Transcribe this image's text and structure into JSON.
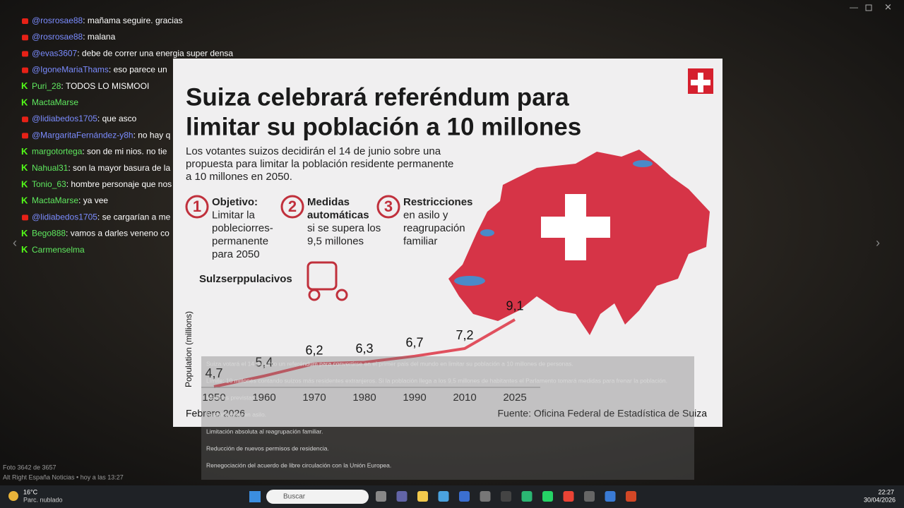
{
  "chat": [
    {
      "source": "youtube",
      "user": "@rosrosae88",
      "text": "mañama seguire. gracias"
    },
    {
      "source": "youtube",
      "user": "@rosrosae88",
      "text": "malana"
    },
    {
      "source": "youtube",
      "user": "@evas3607",
      "text": "debe de correr una energia super densa"
    },
    {
      "source": "youtube",
      "user": "@IgoneMariaThams",
      "text": "eso parece un"
    },
    {
      "source": "kick",
      "user": "Puri_28",
      "text": "TODOS LO MISMOOI"
    },
    {
      "source": "kick",
      "user": "MactaMarse"
    },
    {
      "source": "youtube",
      "user": "@lidiabedos1705",
      "text": "que asco"
    },
    {
      "source": "youtube",
      "user": "@MargaritaFernández-y8h",
      "text": "no hay q"
    },
    {
      "source": "kick",
      "user": "margotortega",
      "text": "son de mi nios. no tie"
    },
    {
      "source": "kick",
      "user": "Nahual31",
      "text": "son la mayor basura de la"
    },
    {
      "source": "kick",
      "user": "Tonio_63",
      "text": "hombre personaje que nos"
    },
    {
      "source": "kick",
      "user": "MactaMarse",
      "text": "ya vee"
    },
    {
      "source": "youtube",
      "user": "@lidiabedos1705",
      "text": "se cargarían a me"
    },
    {
      "source": "kick",
      "user": "Bego888",
      "text": "vamos a darles veneno co"
    },
    {
      "source": "kick",
      "user": "Carmenselma"
    }
  ],
  "infographic": {
    "title": [
      "Suiza celebrará referéndum para",
      "limitar su población a 10 millones"
    ],
    "subtitle": [
      "Los votantes suizos decidirán el 14 de junio sobre una",
      "propuesta para limitar la población residente permanente",
      "a 10 millones en 2050."
    ],
    "points": [
      {
        "number": "1",
        "lines": [
          "Objetivo:",
          "Limitar la",
          "pobleciorres-",
          "permanente",
          "para 2050"
        ]
      },
      {
        "number": "2",
        "lines": [
          "Medidas",
          "automáticas",
          "si se supera los",
          "9,5 millones"
        ]
      },
      {
        "number": "3",
        "lines": [
          "Restricciones",
          "en asilo y",
          "reagrupación",
          "familiar"
        ]
      }
    ],
    "caption": "Sulzserppulacivos",
    "chart": {
      "type": "line",
      "y_label": "Population (millions)",
      "categories": [
        "1950",
        "1960",
        "1970",
        "1980",
        "1990",
        "2010",
        "2025"
      ],
      "values": [
        4.7,
        5.4,
        6.2,
        6.3,
        6.7,
        7.2,
        9.1
      ],
      "value_labels": [
        "4,7",
        "5,4",
        "6,2",
        "6,3",
        "6,7",
        "7,2",
        "9,1"
      ],
      "color": "#e0505e"
    },
    "date": "Febrero 2026",
    "source": "Fuente: Oficina Federal de Estadística de Suiza"
  },
  "article": [
    "Suiza votará el 14 de junio un referéndum para convertirse en el primer país del mundo en limitar su población a 10 millones de personas.",
    "Límite: 10 millones contando suizos más residentes extranjeros. Si la población llega a los 9,5 millones de habitantes el Parlamento tomará medidas para frenar la población.",
    "Medidas previstas:",
    "Restricciones en asilo.",
    "Limitación absoluta al reagrupación familiar.",
    "Reducción de nuevos permisos de residencia.",
    "Renegociación del acuerdo de libre circulación con la Unión Europea."
  ],
  "viewer": {
    "counter": "Foto 3642 de 3657",
    "channel": "Alt Right España Noticias • hoy a las 13:27"
  },
  "taskbar": {
    "temperature": "16°C",
    "weather": "Parc. nublado",
    "search": "Buscar",
    "time": "22:27",
    "date": "30/04/2026"
  }
}
